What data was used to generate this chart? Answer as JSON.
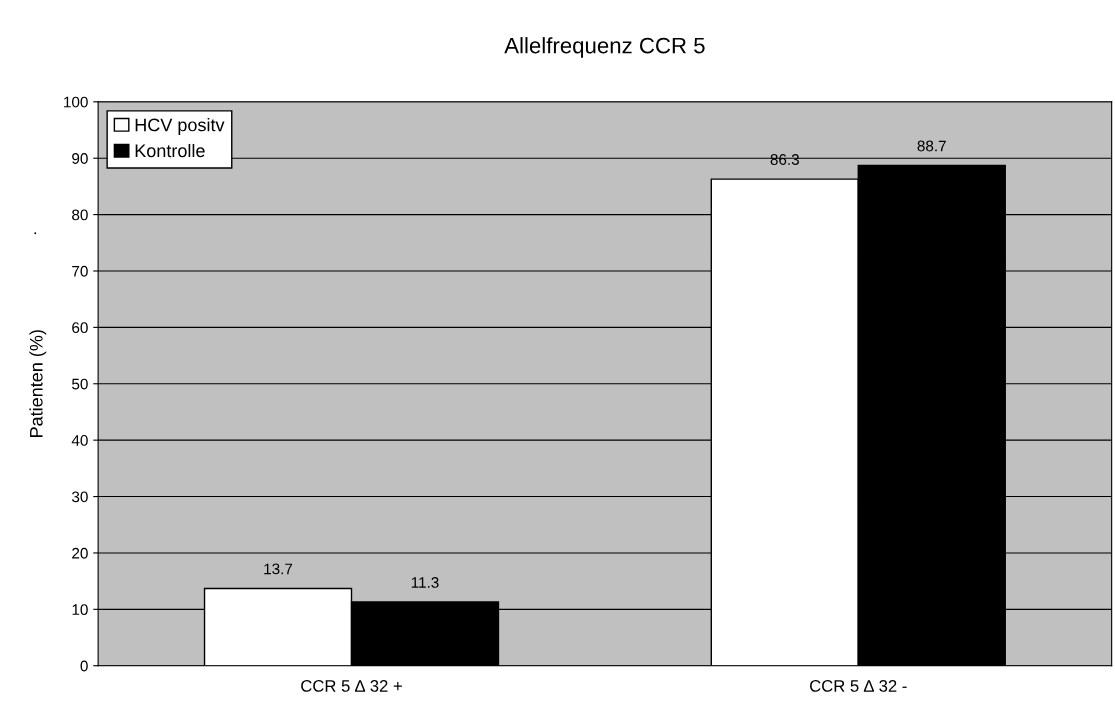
{
  "chart_data": {
    "type": "bar",
    "title": "Allelfrequenz CCR 5",
    "ylabel": "Patienten (%)",
    "categories": [
      "CCR 5 ∆ 32 +",
      "CCR 5 ∆ 32 -"
    ],
    "series": [
      {
        "name": "HCV positv",
        "color": "#ffffff",
        "values": [
          13.7,
          86.3
        ]
      },
      {
        "name": "Kontrolle",
        "color": "#000000",
        "values": [
          11.3,
          88.7
        ]
      }
    ],
    "ylim": [
      0,
      100
    ],
    "yticks": [
      0,
      10,
      20,
      30,
      40,
      50,
      60,
      70,
      80,
      90,
      100
    ],
    "grid": "y",
    "legend": "top left",
    "data_labels": true,
    "annotations": [
      "."
    ]
  }
}
